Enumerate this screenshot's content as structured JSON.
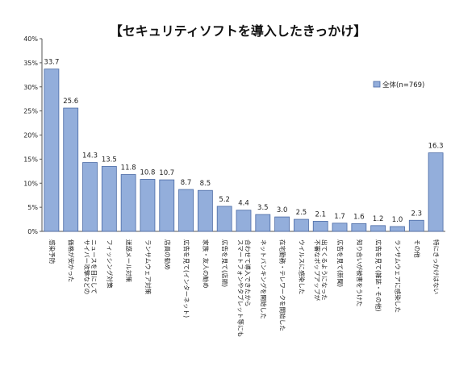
{
  "chart_data": {
    "type": "bar",
    "title": "【セキュリティソフトを導入したきっかけ】",
    "categories": [
      "感染予防",
      "価格が安かった",
      "サイバー攻撃などの\nニュースを目にして",
      "フィッシング対策",
      "迷惑メール対策",
      "ランサムウェア対策",
      "店員の勧め",
      "広告を見て(インターネット)",
      "家族・友人の勧め",
      "広告を見て(店頭)",
      "スマートフォンやタブレット等にも\n合わせて導入できたから",
      "ネットバンキングを開始した",
      "在宅勤務・テレワークを開始した",
      "ウイルスに感染した",
      "不審なポップアップが\n出てくるようになった",
      "広告を見て(新聞)",
      "知り合いが被害をうけた",
      "広告を見て(雑誌・その他)",
      "ランサムウェアに感染した",
      "その他",
      "特にきっかけはない"
    ],
    "series": [
      {
        "name": "全体(n=769)",
        "values": [
          33.7,
          25.6,
          14.3,
          13.5,
          11.8,
          10.8,
          10.7,
          8.7,
          8.5,
          5.2,
          4.4,
          3.5,
          3.0,
          2.5,
          2.1,
          1.7,
          1.6,
          1.2,
          1.0,
          2.3,
          16.3
        ]
      }
    ],
    "value_labels": [
      "33.7",
      "25.6",
      "14.3",
      "13.5",
      "11.8",
      "10.8",
      "10.7",
      "8.7",
      "8.5",
      "5.2",
      "4.4",
      "3.5",
      "3.0",
      "2.5",
      "2.1",
      "1.7",
      "1.6",
      "1.2",
      "1.0",
      "2.3",
      "16.3"
    ],
    "ylim": [
      0,
      40
    ],
    "yticks": [
      "0%",
      "5%",
      "10%",
      "15%",
      "20%",
      "25%",
      "30%",
      "35%",
      "40%"
    ],
    "grid": false,
    "legend_position": "right",
    "colors": {
      "bar_fill": "#93aedb",
      "bar_stroke": "#4a6aa5",
      "axis": "#555555"
    }
  }
}
